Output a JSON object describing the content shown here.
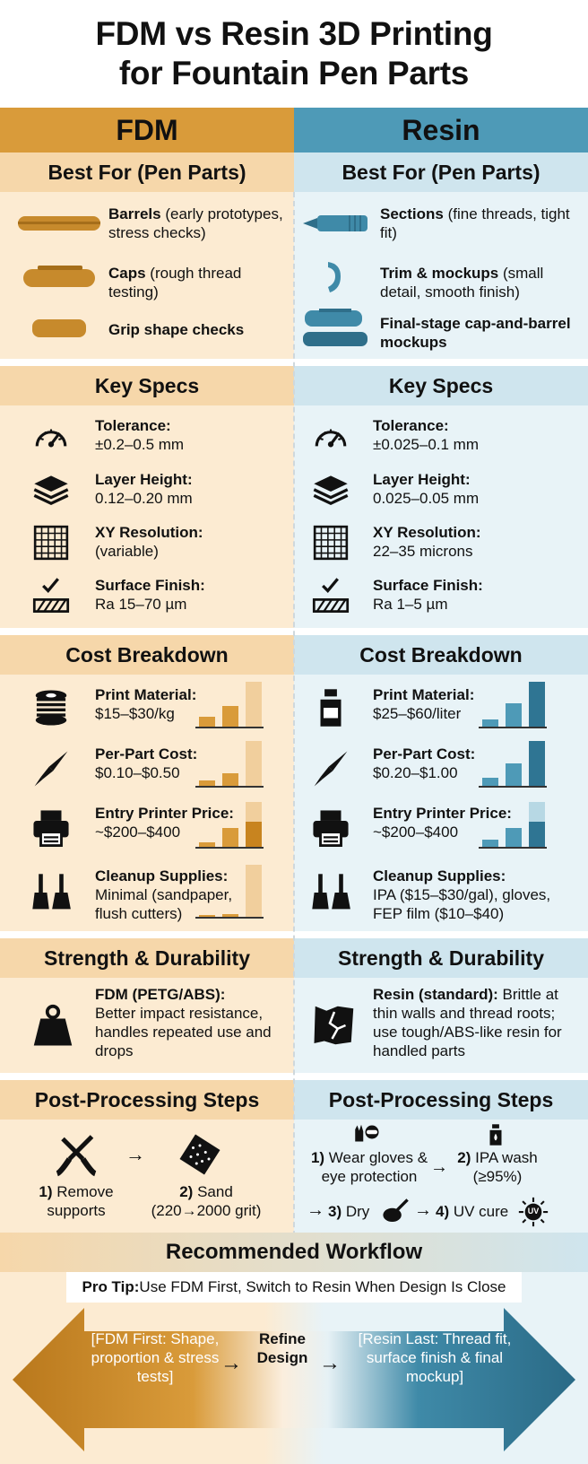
{
  "title": {
    "line1": "FDM vs Resin 3D Printing",
    "line2": "for Fountain Pen Parts"
  },
  "columns": {
    "fdm": {
      "name": "FDM",
      "best_for": {
        "heading": "Best For (Pen Parts)",
        "items": [
          {
            "bold": "Barrels",
            "rest": " (early prototypes, stress checks)"
          },
          {
            "bold": "Caps",
            "rest": " (rough thread testing)"
          },
          {
            "bold": "Grip shape checks",
            "rest": ""
          }
        ]
      },
      "specs": {
        "heading": "Key Specs",
        "items": [
          {
            "label": "Tolerance:",
            "value": "±0.2–0.5 mm",
            "icon": "gauge-icon"
          },
          {
            "label": "Layer Height:",
            "value": "0.12–0.20 mm",
            "icon": "layers-icon"
          },
          {
            "label": "XY Resolution:",
            "value": "(variable)",
            "icon": "grid-icon"
          },
          {
            "label": "Surface Finish:",
            "value": "Ra 15–70 µm",
            "icon": "surface-finish-icon"
          }
        ]
      },
      "cost": {
        "heading": "Cost Breakdown",
        "items": [
          {
            "label": "Print Material:",
            "value": "$15–$30/kg",
            "icon": "filament-spool-icon",
            "bar_levels": [
              0.22,
              0.45,
              1.0
            ]
          },
          {
            "label": "Per-Part Cost:",
            "value": "$0.10–$0.50",
            "icon": "pen-nib-icon",
            "bar_levels": [
              0.12,
              0.28,
              1.0
            ]
          },
          {
            "label": "Entry Printer Price:",
            "value": "~$200–$400",
            "icon": "printer-icon",
            "bar_levels": [
              0.1,
              0.42,
              0.56
            ]
          },
          {
            "label": "Cleanup Supplies:",
            "value": "Minimal (sandpaper, flush cutters)",
            "icon": "brushes-icon",
            "bar_levels": [
              0.04,
              0.06,
              1.0
            ]
          }
        ]
      },
      "strength": {
        "heading": "Strength & Durability",
        "bold": "FDM (PETG/ABS):",
        "rest": "Better impact resistance, handles repeated use and drops",
        "icon": "weight-icon"
      },
      "post": {
        "heading": "Post-Processing Steps",
        "steps": [
          {
            "num": "1)",
            "text": " Remove supports"
          },
          {
            "num": "2)",
            "text": " Sand (220→2000 grit)"
          }
        ],
        "arrow": "→"
      }
    },
    "resin": {
      "name": "Resin",
      "best_for": {
        "heading": "Best For (Pen Parts)",
        "items": [
          {
            "bold": "Sections",
            "rest": " (fine threads, tight fit)"
          },
          {
            "bold": "Trim & mockups",
            "rest": " (small detail, smooth finish)"
          },
          {
            "bold": "Final-stage cap-and-barrel mockups",
            "rest": ""
          }
        ]
      },
      "specs": {
        "heading": "Key Specs",
        "items": [
          {
            "label": "Tolerance:",
            "value": "±0.025–0.1 mm",
            "icon": "gauge-icon"
          },
          {
            "label": "Layer Height:",
            "value": "0.025–0.05 mm",
            "icon": "layers-icon"
          },
          {
            "label": "XY Resolution:",
            "value": "22–35 microns",
            "icon": "grid-icon"
          },
          {
            "label": "Surface Finish:",
            "value": "Ra 1–5 µm",
            "icon": "surface-finish-icon"
          }
        ]
      },
      "cost": {
        "heading": "Cost Breakdown",
        "items": [
          {
            "label": "Print Material:",
            "value": "$25–$60/liter",
            "icon": "resin-bottle-icon",
            "bar_levels": [
              0.15,
              0.52,
              1.0
            ]
          },
          {
            "label": "Per-Part Cost:",
            "value": "$0.20–$1.00",
            "icon": "pen-nib-icon",
            "bar_levels": [
              0.18,
              0.5,
              1.0
            ]
          },
          {
            "label": "Entry Printer Price:",
            "value": "~$200–$400",
            "icon": "printer-icon",
            "bar_levels": [
              0.15,
              0.42,
              0.56
            ]
          },
          {
            "label": "Cleanup Supplies:",
            "value": "IPA ($15–$30/gal), gloves, FEP film ($10–$40)",
            "icon": "brushes-icon",
            "bar_levels": [
              0,
              0,
              0
            ]
          }
        ]
      },
      "strength": {
        "heading": "Strength & Durability",
        "bold": "Resin (standard):",
        "rest": " Brittle at thin walls and thread roots; use tough/ABS-like resin for handled parts",
        "icon": "cracked-block-icon"
      },
      "post": {
        "heading": "Post-Processing Steps",
        "steps": [
          {
            "num": "1)",
            "text": " Wear gloves & eye protection"
          },
          {
            "num": "2)",
            "text": " IPA wash (≥95%)"
          },
          {
            "num": "3)",
            "text": " Dry"
          },
          {
            "num": "4)",
            "text": " UV cure"
          }
        ],
        "arrow": "→",
        "uv_label": "UV"
      }
    }
  },
  "workflow": {
    "heading": "Recommended Workflow",
    "tip_bold": "Pro Tip:",
    "tip_rest": " Use FDM First, Switch to Resin When Design Is Close",
    "left": "[FDM First: Shape, proportion & stress tests]",
    "middle": "Refine Design",
    "right": "[Resin Last: Thread fit, surface finish & final mockup]",
    "arrow": "→"
  },
  "colors": {
    "fdm_accent": "#d99b3a",
    "resin_accent": "#3f8aa8",
    "fdm_light": "#fcebd2",
    "resin_light": "#e8f3f7"
  }
}
